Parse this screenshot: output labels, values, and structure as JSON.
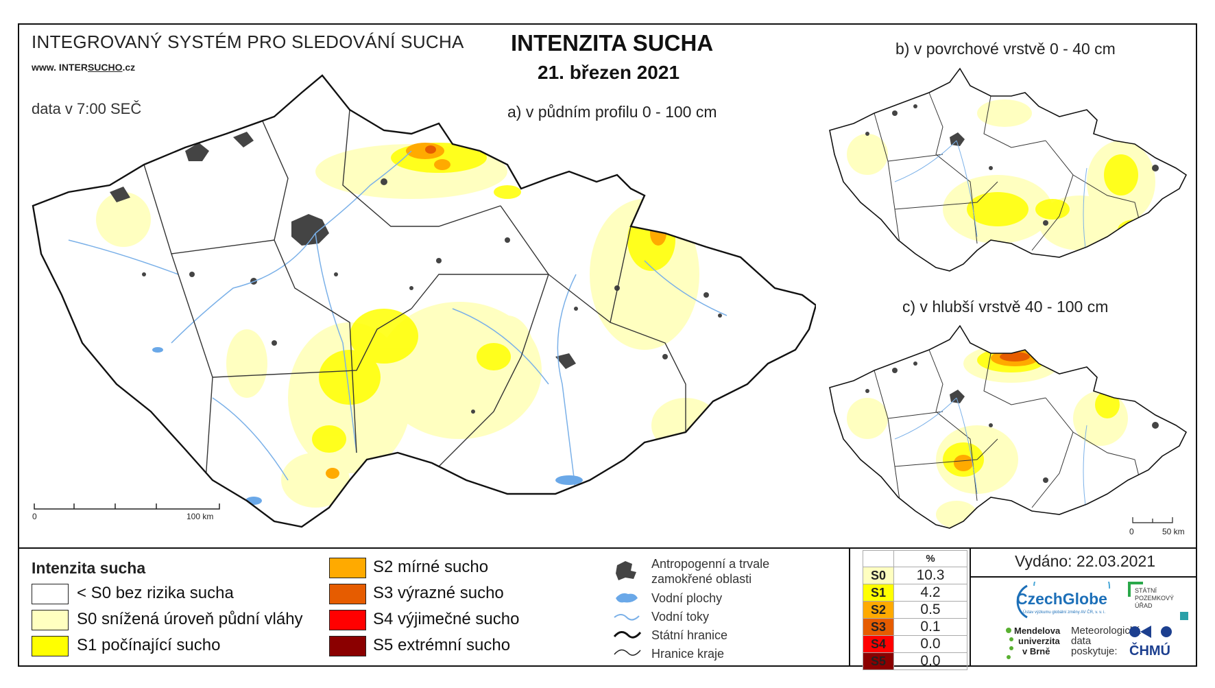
{
  "header": {
    "system_title": "INTEGROVANÝ SYSTÉM PRO SLEDOVÁNÍ SUCHA",
    "website_prefix": "www. INTER",
    "website_underlined": "SUCHO",
    "website_suffix": ".cz",
    "data_time": "data v 7:00 SEČ",
    "main_title": "INTENZITA SUCHA",
    "date": "21. březen 2021"
  },
  "maps": {
    "a": {
      "subtitle": "a) v půdním profilu 0 - 100 cm",
      "scale_start": "0",
      "scale_end": "100 km"
    },
    "b": {
      "subtitle": "b) v povrchové vrstvě 0 - 40 cm"
    },
    "c": {
      "subtitle": "c) v hlubší vrstvě 40 - 100 cm",
      "scale_start": "0",
      "scale_end": "50 km"
    }
  },
  "legend": {
    "title": "Intenzita sucha",
    "classes": [
      {
        "label": "< S0 bez rizika sucha",
        "color": "#ffffff"
      },
      {
        "label": "S0 snížená úroveň půdní vláhy",
        "color": "#ffffc0"
      },
      {
        "label": "S1 počínající sucho",
        "color": "#ffff00"
      },
      {
        "label": "S2 mírné sucho",
        "color": "#ffaa00"
      },
      {
        "label": "S3 výrazné sucho",
        "color": "#e65c00"
      },
      {
        "label": "S4 výjimečné sucho",
        "color": "#ff0000"
      },
      {
        "label": "S5 extrémní sucho",
        "color": "#8b0000"
      }
    ],
    "symbols": [
      {
        "label_line1": "Antropogenní a trvale",
        "label_line2": "zamokřené oblasti"
      },
      {
        "label_line1": "Vodní plochy"
      },
      {
        "label_line1": "Vodní toky"
      },
      {
        "label_line1": "Státní hranice"
      },
      {
        "label_line1": "Hranice kraje"
      }
    ]
  },
  "stats": {
    "header": "%",
    "rows": [
      {
        "code": "S0",
        "value": "10.3",
        "color": "#ffffc0"
      },
      {
        "code": "S1",
        "value": "4.2",
        "color": "#ffff00"
      },
      {
        "code": "S2",
        "value": "0.5",
        "color": "#ffaa00"
      },
      {
        "code": "S3",
        "value": "0.1",
        "color": "#e65c00"
      },
      {
        "code": "S4",
        "value": "0.0",
        "color": "#ff0000"
      },
      {
        "code": "S5",
        "value": "0.0",
        "color": "#8b0000"
      }
    ]
  },
  "footer": {
    "issued": "Vydáno: 22.03.2021",
    "czechglobe": "CzechGlobe",
    "czechglobe_sub": "Ústav výzkumu globální změny AV ČR, v. v. i.",
    "spu_line1": "STÁTNÍ",
    "spu_line2": "POZEMKOVÝ",
    "spu_line3": "ÚŘAD",
    "mendel_line1": "Mendelova",
    "mendel_line2": "univerzita",
    "mendel_line3": "v Brně",
    "meteo_line1": "Meteorologická",
    "meteo_line2": "data",
    "meteo_line3": "poskytuje:",
    "chmu": "ČHMÚ"
  }
}
